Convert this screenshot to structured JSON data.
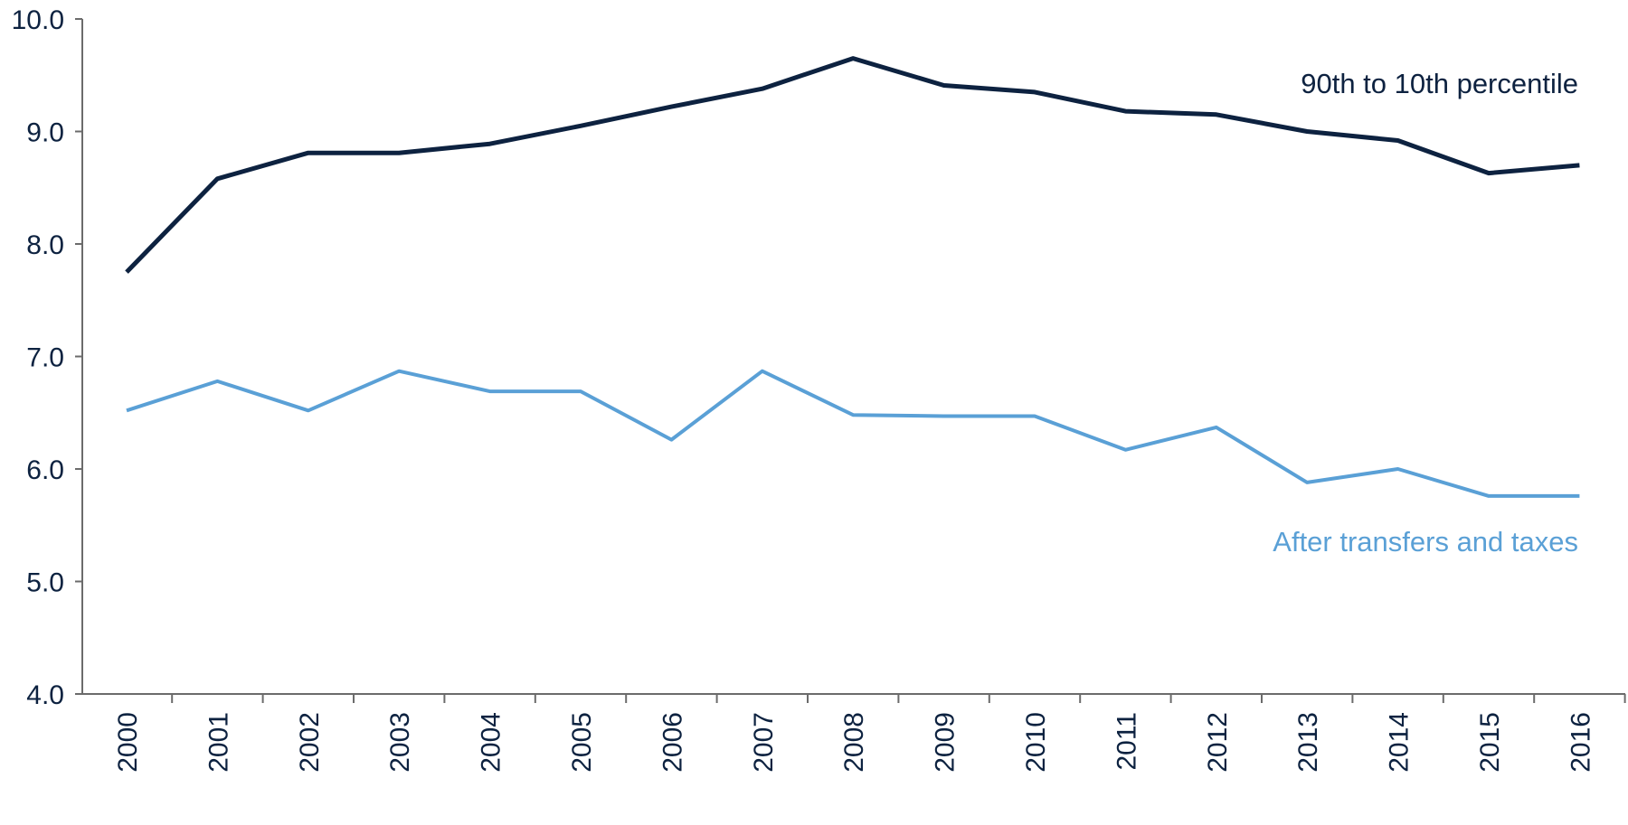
{
  "chart_data": {
    "type": "line",
    "title": "",
    "xlabel": "",
    "ylabel": "",
    "ylim": [
      4.0,
      10.0
    ],
    "yticks": [
      "4.0",
      "5.0",
      "6.0",
      "7.0",
      "8.0",
      "9.0",
      "10.0"
    ],
    "categories": [
      "2000",
      "2001",
      "2002",
      "2003",
      "2004",
      "2005",
      "2006",
      "2007",
      "2008",
      "2009",
      "2010",
      "2011",
      "2012",
      "2013",
      "2014",
      "2015",
      "2016"
    ],
    "grid": false,
    "series": [
      {
        "name": "90th to 10th percentile",
        "color": "#0d2240",
        "values": [
          7.75,
          8.58,
          8.81,
          8.81,
          8.89,
          9.05,
          9.22,
          9.38,
          9.65,
          9.41,
          9.35,
          9.18,
          9.15,
          9.0,
          8.92,
          8.63,
          8.7
        ]
      },
      {
        "name": "After transfers and taxes",
        "color": "#5aa0d6",
        "values": [
          6.52,
          6.78,
          6.52,
          6.87,
          6.69,
          6.69,
          6.26,
          6.87,
          6.48,
          6.47,
          6.47,
          6.17,
          6.37,
          5.88,
          6.0,
          5.76,
          5.76
        ]
      }
    ]
  }
}
